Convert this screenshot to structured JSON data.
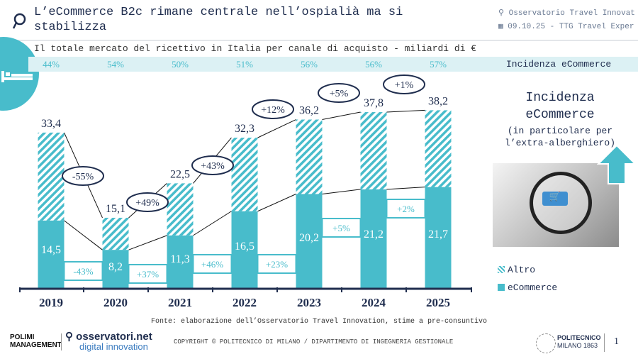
{
  "header": {
    "title": "L’eCommerce B2c rimane centrale nell’ospialià ma si stabilizza",
    "org": "Osservatorio Travel Innovat",
    "date_event": "09.10.25 - TTG Travel Exper"
  },
  "subtitle": "Il totale mercato del ricettivo in Italia per canale di acquisto - miliardi di €",
  "incidenza_label": "Incidenza eCommerce",
  "colors": {
    "ecommerce": "#48bccb",
    "altro_hatch": "#48bccb",
    "band": "#dcf1f4",
    "text_dark": "#1f2d4e"
  },
  "chart_data": {
    "type": "bar",
    "stacked": true,
    "categories": [
      "2019",
      "2020",
      "2021",
      "2022",
      "2023",
      "2024",
      "2025"
    ],
    "series": [
      {
        "name": "eCommerce",
        "values": [
          14.5,
          8.2,
          11.3,
          16.5,
          20.2,
          21.2,
          21.7
        ],
        "labels": [
          "14,5",
          "8,2",
          "11,3",
          "16,5",
          "20,2",
          "21,2",
          "21,7"
        ]
      },
      {
        "name": "Altro",
        "values": [
          18.9,
          6.9,
          11.2,
          15.8,
          16.0,
          16.6,
          16.5
        ]
      }
    ],
    "totals": [
      33.4,
      15.1,
      22.5,
      32.3,
      36.2,
      37.8,
      38.2
    ],
    "total_labels": [
      "33,4",
      "15,1",
      "22,5",
      "32,3",
      "36,2",
      "37,8",
      "38,2"
    ],
    "total_growth": [
      "-55%",
      "+49%",
      "+43%",
      "+12%",
      "+5%",
      "+1%"
    ],
    "ecommerce_growth": [
      "-43%",
      "+37%",
      "+46%",
      "+23%",
      "+5%",
      "+2%"
    ],
    "ecommerce_share": [
      "44%",
      "54%",
      "50%",
      "51%",
      "56%",
      "56%",
      "57%"
    ],
    "legend": [
      "Altro",
      "eCommerce"
    ],
    "legend_placement": "bottom-right",
    "grid": false
  },
  "right_panel": {
    "title": "Incidenza eCommerce",
    "subtitle": "(in particolare per l’extra-alberghiero)"
  },
  "footer": {
    "source": "Fonte: elaborazione dell’Osservatorio Travel Innovation, stime a pre-consuntivo",
    "copyright": "COPYRIGHT © POLITECNICO DI MILANO / DIPARTIMENTO DI INGEGNERIA GESTIONALE",
    "logo_polimi_school": "POLIMI SCHOOL OF MANAGEMENT",
    "logo_osservatori": "osservatori.net",
    "logo_osservatori_sub": "digital innovation",
    "logo_politecnico": "POLITECNICO MILANO 1863",
    "page_number": "1"
  }
}
